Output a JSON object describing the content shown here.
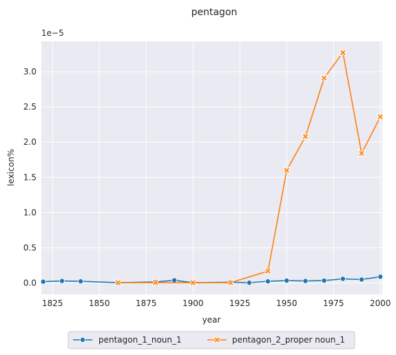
{
  "chart_data": {
    "type": "line",
    "title": "pentagon",
    "xlabel": "year",
    "ylabel": "lexicon%",
    "y_offset_label": "1e−5",
    "xlim": [
      1819,
      2001
    ],
    "ylim": [
      -0.16,
      3.43
    ],
    "x_ticks": [
      1825,
      1850,
      1875,
      1900,
      1925,
      1950,
      1975,
      2000
    ],
    "y_ticks": [
      0.0,
      0.5,
      1.0,
      1.5,
      2.0,
      2.5,
      3.0
    ],
    "y_tick_labels": [
      "0.0",
      "0.5",
      "1.0",
      "1.5",
      "2.0",
      "2.5",
      "3.0"
    ],
    "grid": true,
    "background": "#eaeaf2",
    "legend_position": "bottom-center",
    "series": [
      {
        "name": "pentagon_1_noun_1",
        "color": "#1f77b4",
        "marker": "circle",
        "x": [
          1820,
          1830,
          1840,
          1860,
          1880,
          1890,
          1900,
          1920,
          1930,
          1940,
          1950,
          1960,
          1970,
          1980,
          1990,
          2000
        ],
        "y": [
          0.02,
          0.03,
          0.025,
          0.005,
          0.015,
          0.04,
          0.005,
          0.012,
          0.005,
          0.025,
          0.035,
          0.03,
          0.035,
          0.06,
          0.05,
          0.09
        ]
      },
      {
        "name": "pentagon_2_proper noun_1",
        "color": "#ff7f0e",
        "marker": "x",
        "x": [
          1860,
          1880,
          1900,
          1920,
          1940,
          1950,
          1960,
          1970,
          1980,
          1990,
          2000
        ],
        "y": [
          0.005,
          0.005,
          0.005,
          0.005,
          0.17,
          1.6,
          2.08,
          2.91,
          3.27,
          1.84,
          2.36
        ]
      }
    ]
  }
}
